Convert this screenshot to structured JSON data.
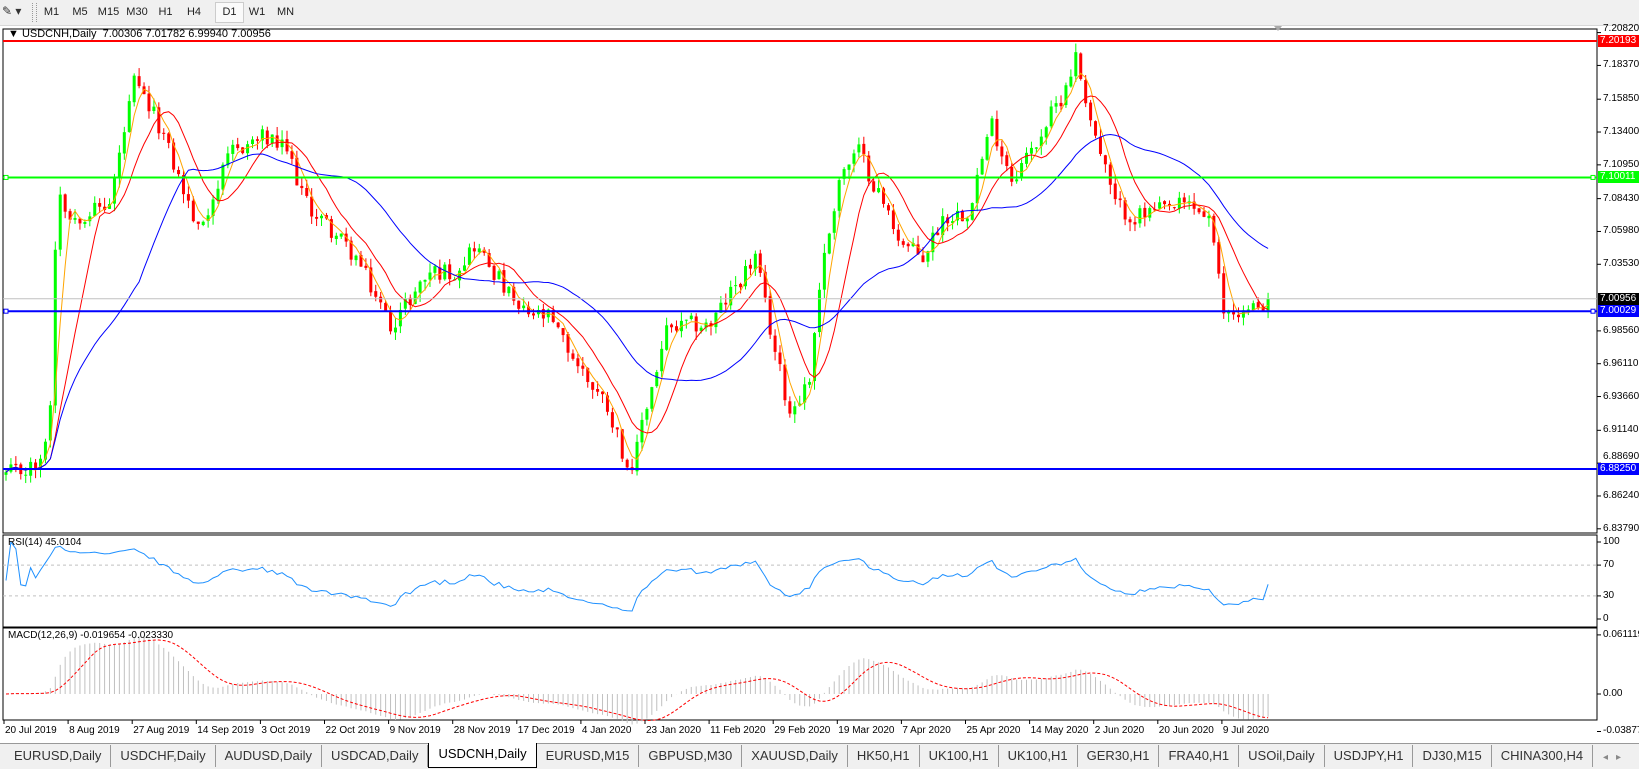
{
  "toolbar": {
    "timeframes": [
      "M1",
      "M5",
      "M15",
      "M30",
      "H1",
      "H4",
      "D1",
      "W1",
      "MN"
    ],
    "active": "D1"
  },
  "chart": {
    "symbol_title": "USDCNH,Daily",
    "ohlc": "7.00306 7.01782 6.99940 7.00956",
    "price_ticks": [
      "7.20820",
      "7.18370",
      "7.15850",
      "7.13400",
      "7.10950",
      "7.08430",
      "7.05980",
      "7.03530",
      "6.98560",
      "6.96110",
      "6.93660",
      "6.91140",
      "6.88690",
      "6.86240",
      "6.83790"
    ],
    "hlines": [
      {
        "price": 7.20193,
        "label": "7.20193",
        "color": "#ff0000"
      },
      {
        "price": 7.10011,
        "label": "7.10011",
        "color": "#00ff00"
      },
      {
        "price": 7.00029,
        "label": "7.00029",
        "color": "#0000ff"
      },
      {
        "price": 6.8825,
        "label": "6.88250",
        "color": "#0000ff"
      }
    ],
    "bid_line": {
      "price": 7.00956,
      "label": "7.00956",
      "color": "#000000"
    },
    "colors": {
      "bull": "#00ff00",
      "bear": "#ff0000",
      "ma_fast": "#ffa500",
      "ma_mid": "#ff0000",
      "ma_slow": "#0000ff"
    }
  },
  "rsi": {
    "label": "RSI(14) 45.0104",
    "ticks": [
      "100",
      "70",
      "30",
      "0"
    ],
    "color": "#1e90ff"
  },
  "macd": {
    "label": "MACD(12,26,9) -0.019654 -0.023330",
    "ticks": [
      "0.061119",
      "0.00",
      "-0.038777"
    ],
    "hist_color": "#c0c0c0",
    "signal_color": "#ff0000"
  },
  "date_axis": {
    "labels": [
      "20 Jul 2019",
      "8 Aug 2019",
      "27 Aug 2019",
      "14 Sep 2019",
      "3 Oct 2019",
      "22 Oct 2019",
      "9 Nov 2019",
      "28 Nov 2019",
      "17 Dec 2019",
      "4 Jan 2020",
      "23 Jan 2020",
      "11 Feb 2020",
      "29 Feb 2020",
      "19 Mar 2020",
      "7 Apr 2020",
      "25 Apr 2020",
      "14 May 2020",
      "2 Jun 2020",
      "20 Jun 2020",
      "9 Jul 2020"
    ]
  },
  "tabs": [
    "EURUSD,Daily",
    "USDCHF,Daily",
    "AUDUSD,Daily",
    "USDCAD,Daily",
    "USDCNH,Daily",
    "EURUSD,M15",
    "GBPUSD,M30",
    "XAUUSD,Daily",
    "HK50,H1",
    "UK100,H1",
    "UK100,H1",
    "GER30,H1",
    "FRA40,H1",
    "USOil,Daily",
    "USDJPY,H1",
    "DJ30,M15",
    "CHINA300,H4"
  ],
  "active_tab": 4,
  "chart_data": {
    "type": "candlestick",
    "bar_count": 257,
    "ylim": [
      6.8379,
      7.2082
    ],
    "close_path": [
      [
        0,
        6.878
      ],
      [
        7,
        6.885
      ],
      [
        9,
        6.93
      ],
      [
        10,
        7.05
      ],
      [
        11,
        7.09
      ],
      [
        13,
        7.07
      ],
      [
        21,
        7.08
      ],
      [
        26,
        7.17
      ],
      [
        31,
        7.14
      ],
      [
        39,
        7.06
      ],
      [
        46,
        7.12
      ],
      [
        52,
        7.13
      ],
      [
        57,
        7.12
      ],
      [
        61,
        7.08
      ],
      [
        65,
        7.065
      ],
      [
        71,
        7.04
      ],
      [
        78,
        6.99
      ],
      [
        86,
        7.03
      ],
      [
        91,
        7.03
      ],
      [
        95,
        7.05
      ],
      [
        99,
        7.03
      ],
      [
        104,
        7.0
      ],
      [
        110,
        6.995
      ],
      [
        117,
        6.955
      ],
      [
        122,
        6.93
      ],
      [
        127,
        6.875
      ],
      [
        129,
        6.92
      ],
      [
        130,
        6.93
      ],
      [
        134,
        6.985
      ],
      [
        139,
        6.99
      ],
      [
        143,
        6.99
      ],
      [
        148,
        7.02
      ],
      [
        152,
        7.04
      ],
      [
        156,
        6.97
      ],
      [
        159,
        6.925
      ],
      [
        163,
        6.95
      ],
      [
        165,
        7.02
      ],
      [
        169,
        7.1
      ],
      [
        173,
        7.12
      ],
      [
        178,
        7.08
      ],
      [
        182,
        7.05
      ],
      [
        186,
        7.04
      ],
      [
        190,
        7.07
      ],
      [
        195,
        7.075
      ],
      [
        200,
        7.14
      ],
      [
        204,
        7.1
      ],
      [
        208,
        7.12
      ],
      [
        214,
        7.16
      ],
      [
        217,
        7.19
      ],
      [
        219,
        7.16
      ],
      [
        221,
        7.13
      ],
      [
        225,
        7.08
      ],
      [
        229,
        7.07
      ],
      [
        234,
        7.075
      ],
      [
        240,
        7.08
      ],
      [
        244,
        7.07
      ],
      [
        247,
        7.0
      ],
      [
        252,
        7.0
      ],
      [
        256,
        7.00956
      ]
    ]
  }
}
